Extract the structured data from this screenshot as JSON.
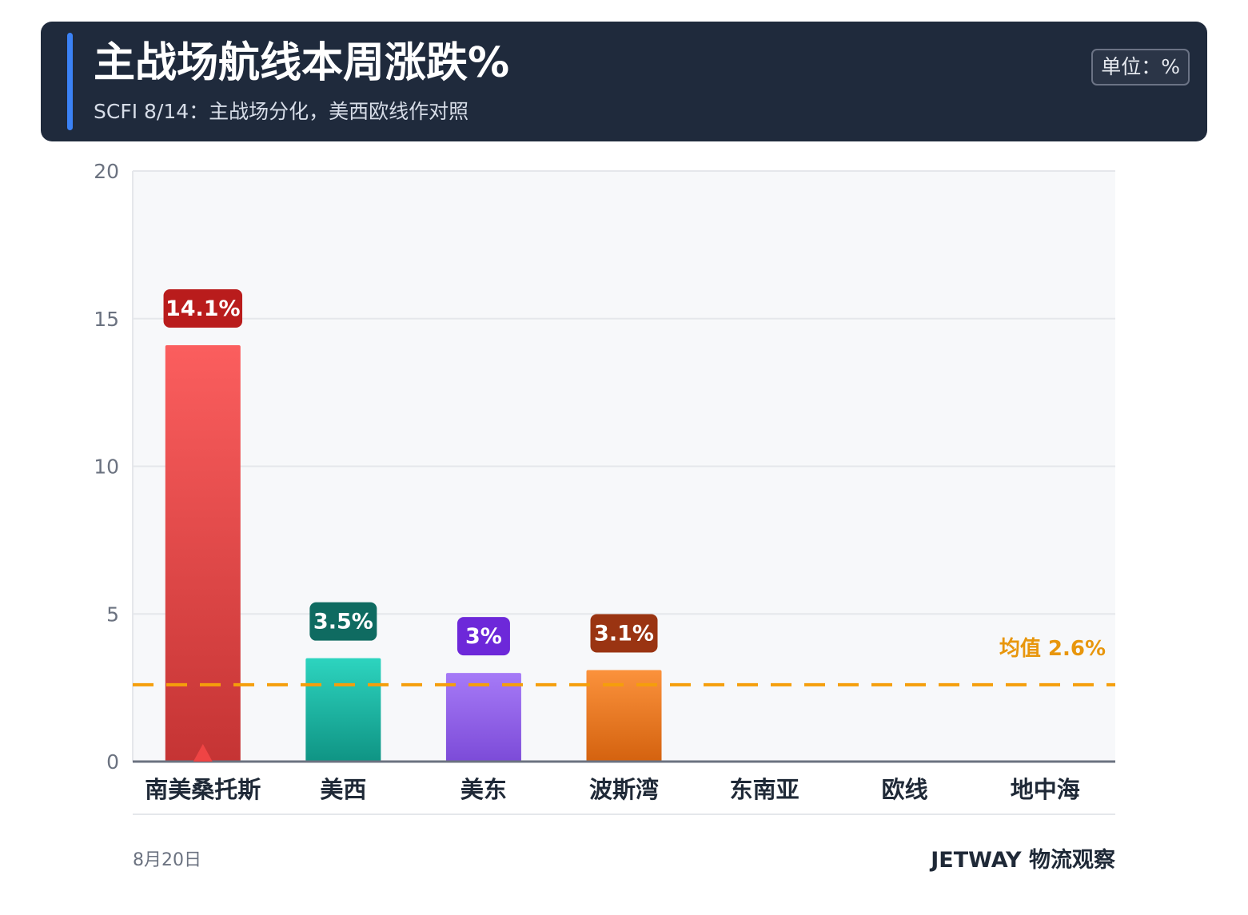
{
  "header": {
    "title": "主战场航线本周涨跌%",
    "subtitle": "SCFI 8/14：主战场分化，美西欧线作对照",
    "unit_label": "单位：%"
  },
  "chart_data": {
    "type": "bar",
    "categories": [
      "南美桑托斯",
      "美西",
      "美东",
      "波斯湾",
      "东南亚",
      "欧线",
      "地中海"
    ],
    "values": [
      14.1,
      3.5,
      3.0,
      3.1,
      null,
      null,
      null
    ],
    "value_labels": [
      "14.1%",
      "3.5%",
      "3%",
      "3.1%",
      "",
      "",
      ""
    ],
    "ylim": [
      0,
      20
    ],
    "yticks": [
      0,
      5,
      10,
      15,
      20
    ],
    "average": {
      "value": 2.6,
      "label": "均值 2.6%"
    },
    "grid": true,
    "highlight_index": 0,
    "colors": {
      "bars": [
        [
          "#fb5e5e",
          "#c53434"
        ],
        [
          "#2dd4bf",
          "#0f9484"
        ],
        [
          "#a67af7",
          "#7c4bd8"
        ],
        [
          "#fb923c",
          "#d4620f"
        ],
        [
          "#9ca3af",
          "#6b7280"
        ],
        [
          "#9ca3af",
          "#6b7280"
        ],
        [
          "#9ca3af",
          "#6b7280"
        ]
      ],
      "label_bg": [
        "#b91c1c",
        "#0f6b61",
        "#6d28d9",
        "#9a3412",
        "#4b5563",
        "#4b5563",
        "#4b5563"
      ],
      "average_line": "#f59e0b",
      "average_text": "#e8960c",
      "marker": "#ef4444",
      "plot_bg": "#f7f8fa",
      "grid": "#e5e7eb",
      "axis": "#6b7280",
      "tick_text": "#6b7280",
      "category_text": "#1f2937"
    }
  },
  "footer": {
    "date": "8月20日",
    "brand": "JETWAY 物流观察"
  }
}
